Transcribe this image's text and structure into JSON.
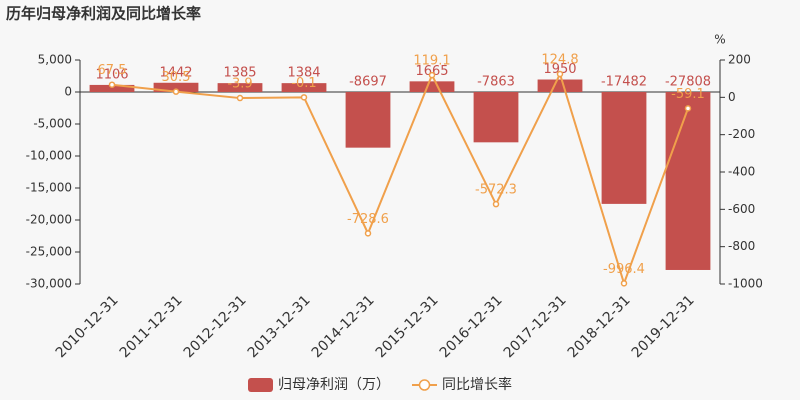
{
  "chart_data": {
    "type": "bar",
    "title": "历年归母净利润及同比增长率",
    "categories": [
      "2010-12-31",
      "2011-12-31",
      "2012-12-31",
      "2013-12-31",
      "2014-12-31",
      "2015-12-31",
      "2016-12-31",
      "2017-12-31",
      "2018-12-31",
      "2019-12-31"
    ],
    "series": [
      {
        "name": "归母净利润（万）",
        "type": "bar",
        "color": "#c4504d",
        "values": [
          1106,
          1442,
          1385,
          1384,
          -8697,
          1665,
          -7863,
          1950,
          -17482,
          -27808
        ]
      },
      {
        "name": "同比增长率",
        "type": "line",
        "axis": "y2",
        "color": "#f0a04b",
        "values": [
          67.5,
          30.5,
          -3.9,
          -0.1,
          -728.6,
          119.1,
          -572.3,
          124.8,
          -996.4,
          -59.1
        ]
      }
    ],
    "ylim": [
      -30000,
      5000
    ],
    "yticks": [
      {
        "value": 5000,
        "label": "5,000"
      },
      0,
      {
        "value": -5000,
        "label": "-5,000"
      },
      {
        "value": -10000,
        "label": "-10,000"
      },
      {
        "value": -15000,
        "label": "-15,000"
      },
      {
        "value": -20000,
        "label": "-20,000"
      },
      {
        "value": -25000,
        "label": "-25,000"
      },
      {
        "value": -30000,
        "label": "-30,000"
      }
    ],
    "y2label": "%",
    "y2lim": [
      -1000,
      200
    ],
    "y2ticks": [
      200,
      0,
      -200,
      -400,
      -600,
      -800,
      -1000
    ],
    "legend": "bottom"
  }
}
